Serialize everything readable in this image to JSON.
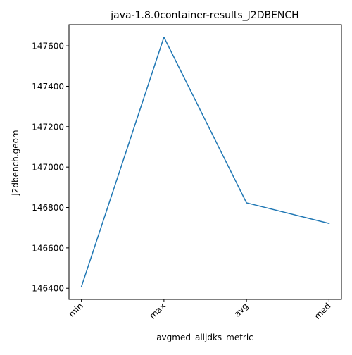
{
  "chart_data": {
    "type": "line",
    "title": "java-1.8.0container-results_J2DBENCH",
    "xlabel": "avgmed_alljdks_metric",
    "ylabel": "j2dbench.geom",
    "categories": [
      "min",
      "max",
      "avg",
      "med"
    ],
    "series": [
      {
        "values": [
          146407,
          147643,
          146823,
          146721
        ],
        "color": "#1f77b4"
      }
    ],
    "ylim": [
      146345,
      147705
    ],
    "yticks": [
      146400,
      146600,
      146800,
      147000,
      147200,
      147400,
      147600
    ],
    "grid": false
  }
}
